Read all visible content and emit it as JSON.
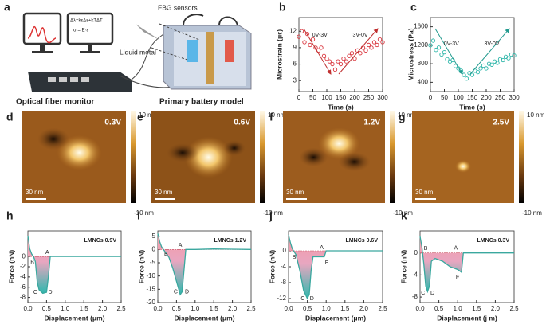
{
  "panel_labels": [
    "a",
    "b",
    "c",
    "d",
    "e",
    "f",
    "g",
    "h",
    "i",
    "j",
    "k"
  ],
  "schematic": {
    "equations": [
      "Δλ=kεΔε+kTΔT",
      "σ = E·ε"
    ],
    "fbg": "FBG sensors",
    "metal": "Liquid metal",
    "monitor": "Optical fiber monitor",
    "battery": "Primary battery model"
  },
  "afm_images": [
    {
      "voltage": "0.3V",
      "scale_bar": "30 nm",
      "colorbar_max": "10 nm",
      "colorbar_min": "-10 nm"
    },
    {
      "voltage": "0.6V",
      "scale_bar": "30 nm",
      "colorbar_max": "10 nm",
      "colorbar_min": "-10 nm"
    },
    {
      "voltage": "1.2V",
      "scale_bar": "30 nm",
      "colorbar_max": "10 nm",
      "colorbar_min": "-10 nm"
    },
    {
      "voltage": "2.5V",
      "scale_bar": "30 nm",
      "colorbar_max": "10 nm",
      "colorbar_min": "-10 nm"
    }
  ],
  "chart_data": [
    {
      "type": "scatter",
      "xlabel": "Time (s)",
      "ylabel": "Microstrain (με)",
      "color": "#d9363e",
      "x": [
        0,
        10,
        20,
        30,
        40,
        50,
        60,
        70,
        80,
        90,
        100,
        110,
        120,
        130,
        140,
        150,
        160,
        170,
        180,
        190,
        200,
        210,
        220,
        230,
        240,
        250,
        260,
        270,
        280,
        290,
        300
      ],
      "values": [
        11,
        12,
        10,
        11.5,
        9.5,
        10.5,
        9,
        8.5,
        9,
        7.5,
        7,
        6.5,
        6,
        5,
        6.5,
        6,
        7,
        6.5,
        7.5,
        8,
        7,
        8.5,
        8,
        9,
        8.5,
        9.5,
        9,
        10,
        9.5,
        10.5,
        10
      ],
      "xlim": [
        0,
        300
      ],
      "xticks": [
        0,
        50,
        100,
        150,
        200,
        250,
        300
      ],
      "ylim": [
        1,
        14.5
      ],
      "yticks": [
        3,
        6,
        9,
        12
      ],
      "annotations": [
        {
          "text": "0V-3V",
          "x": 75,
          "y": 11.3
        },
        {
          "text": "3V-0V",
          "x": 220,
          "y": 11.3
        }
      ]
    },
    {
      "type": "scatter",
      "xlabel": "Time (s)",
      "ylabel": "Microstress (Pa)",
      "color": "#2bb5a8",
      "x": [
        0,
        10,
        20,
        30,
        40,
        50,
        60,
        70,
        80,
        90,
        100,
        110,
        120,
        130,
        140,
        150,
        160,
        170,
        180,
        190,
        200,
        210,
        220,
        230,
        240,
        250,
        260,
        270,
        280,
        290,
        300
      ],
      "values": [
        1200,
        1300,
        1100,
        1150,
        1000,
        1050,
        900,
        850,
        880,
        750,
        700,
        650,
        560,
        480,
        600,
        560,
        650,
        620,
        700,
        760,
        700,
        800,
        780,
        850,
        820,
        900,
        880,
        950,
        920,
        1000,
        980
      ],
      "xlim": [
        0,
        300
      ],
      "xticks": [
        0,
        50,
        100,
        150,
        200,
        250,
        300
      ],
      "ylim": [
        200,
        1800
      ],
      "yticks": [
        400,
        800,
        1200,
        1600
      ],
      "annotations": [
        {
          "text": "0V-3V",
          "x": 75,
          "y": 1230
        },
        {
          "text": "3V-0V",
          "x": 220,
          "y": 1230
        }
      ]
    },
    {
      "type": "line",
      "xlabel": "Displacement (μm)",
      "ylabel": "Force (nN)",
      "color": "#3aa89f",
      "annotation": "LMNCs  0.9V",
      "x": [
        0,
        0.05,
        0.1,
        0.15,
        0.2,
        0.25,
        0.3,
        0.4,
        0.5,
        0.55,
        0.6,
        1,
        1.5,
        2,
        2.5
      ],
      "values": [
        4,
        1.5,
        0.5,
        0,
        -1,
        -5,
        -6.5,
        -7.2,
        -7,
        -4,
        0,
        0,
        0,
        0,
        0
      ],
      "xlim": [
        0,
        2.5
      ],
      "xticks": [
        {
          "value": 0,
          "label": "0.0"
        },
        0.5,
        {
          "value": 1,
          "label": "1.0"
        },
        1.5,
        {
          "value": 2,
          "label": "2.0"
        },
        2.5
      ],
      "ylim": [
        -9,
        5
      ],
      "yticks": [
        0,
        -2,
        -4,
        -6,
        -8
      ],
      "point_labels": [
        {
          "text": "B",
          "x": 0.12,
          "y": -1.2
        },
        {
          "text": "A",
          "x": 0.52,
          "y": 0.8
        },
        {
          "text": "C",
          "x": 0.2,
          "y": -7
        },
        {
          "text": "D",
          "x": 0.6,
          "y": -7
        }
      ]
    },
    {
      "type": "line",
      "xlabel": "Displacement (μm)",
      "ylabel": "Force (nN)",
      "color": "#3aa89f",
      "annotation": "LMNCs  1.2V",
      "x": [
        0,
        0.05,
        0.1,
        0.2,
        0.3,
        0.4,
        0.5,
        0.6,
        0.65,
        0.7,
        0.75,
        1,
        1.5,
        2,
        2.5
      ],
      "values": [
        6,
        3,
        1,
        -1,
        -3,
        -7,
        -12,
        -17,
        -16,
        -8,
        0,
        0,
        0.2,
        0.1,
        0
      ],
      "xlim": [
        0,
        2.5
      ],
      "xticks": [
        {
          "value": 0,
          "label": "0.0"
        },
        0.5,
        {
          "value": 1,
          "label": "1.0"
        },
        1.5,
        {
          "value": 2,
          "label": "2.0"
        },
        2.5
      ],
      "ylim": [
        -20,
        7
      ],
      "yticks": [
        5,
        0,
        -5,
        -10,
        -15,
        -20
      ],
      "point_labels": [
        {
          "text": "B",
          "x": 0.22,
          "y": -1.8
        },
        {
          "text": "A",
          "x": 0.6,
          "y": 1.5
        },
        {
          "text": "C",
          "x": 0.48,
          "y": -16
        },
        {
          "text": "D",
          "x": 0.78,
          "y": -16
        }
      ]
    },
    {
      "type": "line",
      "xlabel": "Displacement (μm)",
      "ylabel": "Force (nN)",
      "color": "#3aa89f",
      "annotation": "LMNCs  0.6V",
      "x": [
        0,
        0.05,
        0.1,
        0.2,
        0.3,
        0.4,
        0.5,
        0.55,
        0.6,
        0.65,
        0.9,
        0.95,
        1,
        1.5,
        2,
        2.5
      ],
      "values": [
        4,
        2,
        0.5,
        -1,
        -5,
        -10,
        -12,
        -11,
        -5,
        -1.5,
        -1.5,
        -1.5,
        0,
        0,
        0,
        0
      ],
      "xlim": [
        0,
        2.5
      ],
      "xticks": [
        {
          "value": 0,
          "label": "0.0"
        },
        0.5,
        {
          "value": 1,
          "label": "1.0"
        },
        1.5,
        {
          "value": 2,
          "label": "2.0"
        },
        2.5
      ],
      "ylim": [
        -13,
        5
      ],
      "yticks": [
        0,
        -4,
        -8,
        -12
      ],
      "point_labels": [
        {
          "text": "B",
          "x": 0.15,
          "y": -1.6
        },
        {
          "text": "A",
          "x": 0.88,
          "y": 0.8
        },
        {
          "text": "E",
          "x": 1.02,
          "y": -3
        },
        {
          "text": "C",
          "x": 0.38,
          "y": -12
        },
        {
          "text": "D",
          "x": 0.62,
          "y": -12
        }
      ]
    },
    {
      "type": "line",
      "xlabel": "Displacement (j m)",
      "ylabel": "Force (nN)",
      "color": "#3aa89f",
      "annotation": "LMNCs  0.3V",
      "x": [
        0,
        0.05,
        0.1,
        0.15,
        0.2,
        0.25,
        0.3,
        0.4,
        0.6,
        0.8,
        1,
        1.1,
        1.15,
        1.5,
        2,
        2.5
      ],
      "values": [
        3,
        1,
        -2,
        -6,
        -7,
        -6,
        -1.5,
        -1,
        -1.5,
        -2.5,
        -3,
        -3.5,
        0,
        0,
        0,
        0
      ],
      "xlim": [
        0,
        2.5
      ],
      "xticks": [
        {
          "value": 0,
          "label": "0.0"
        },
        0.5,
        {
          "value": 1,
          "label": "1.0"
        },
        1.5,
        {
          "value": 2,
          "label": "2.0"
        },
        2.5
      ],
      "ylim": [
        -9,
        4
      ],
      "yticks": [
        0,
        -4,
        -8
      ],
      "point_labels": [
        {
          "text": "B",
          "x": 0.15,
          "y": 0.8
        },
        {
          "text": "A",
          "x": 0.95,
          "y": 0.9
        },
        {
          "text": "E",
          "x": 1.0,
          "y": -4.5
        },
        {
          "text": "C",
          "x": 0.08,
          "y": -7.3
        },
        {
          "text": "D",
          "x": 0.33,
          "y": -7.3
        }
      ]
    }
  ]
}
